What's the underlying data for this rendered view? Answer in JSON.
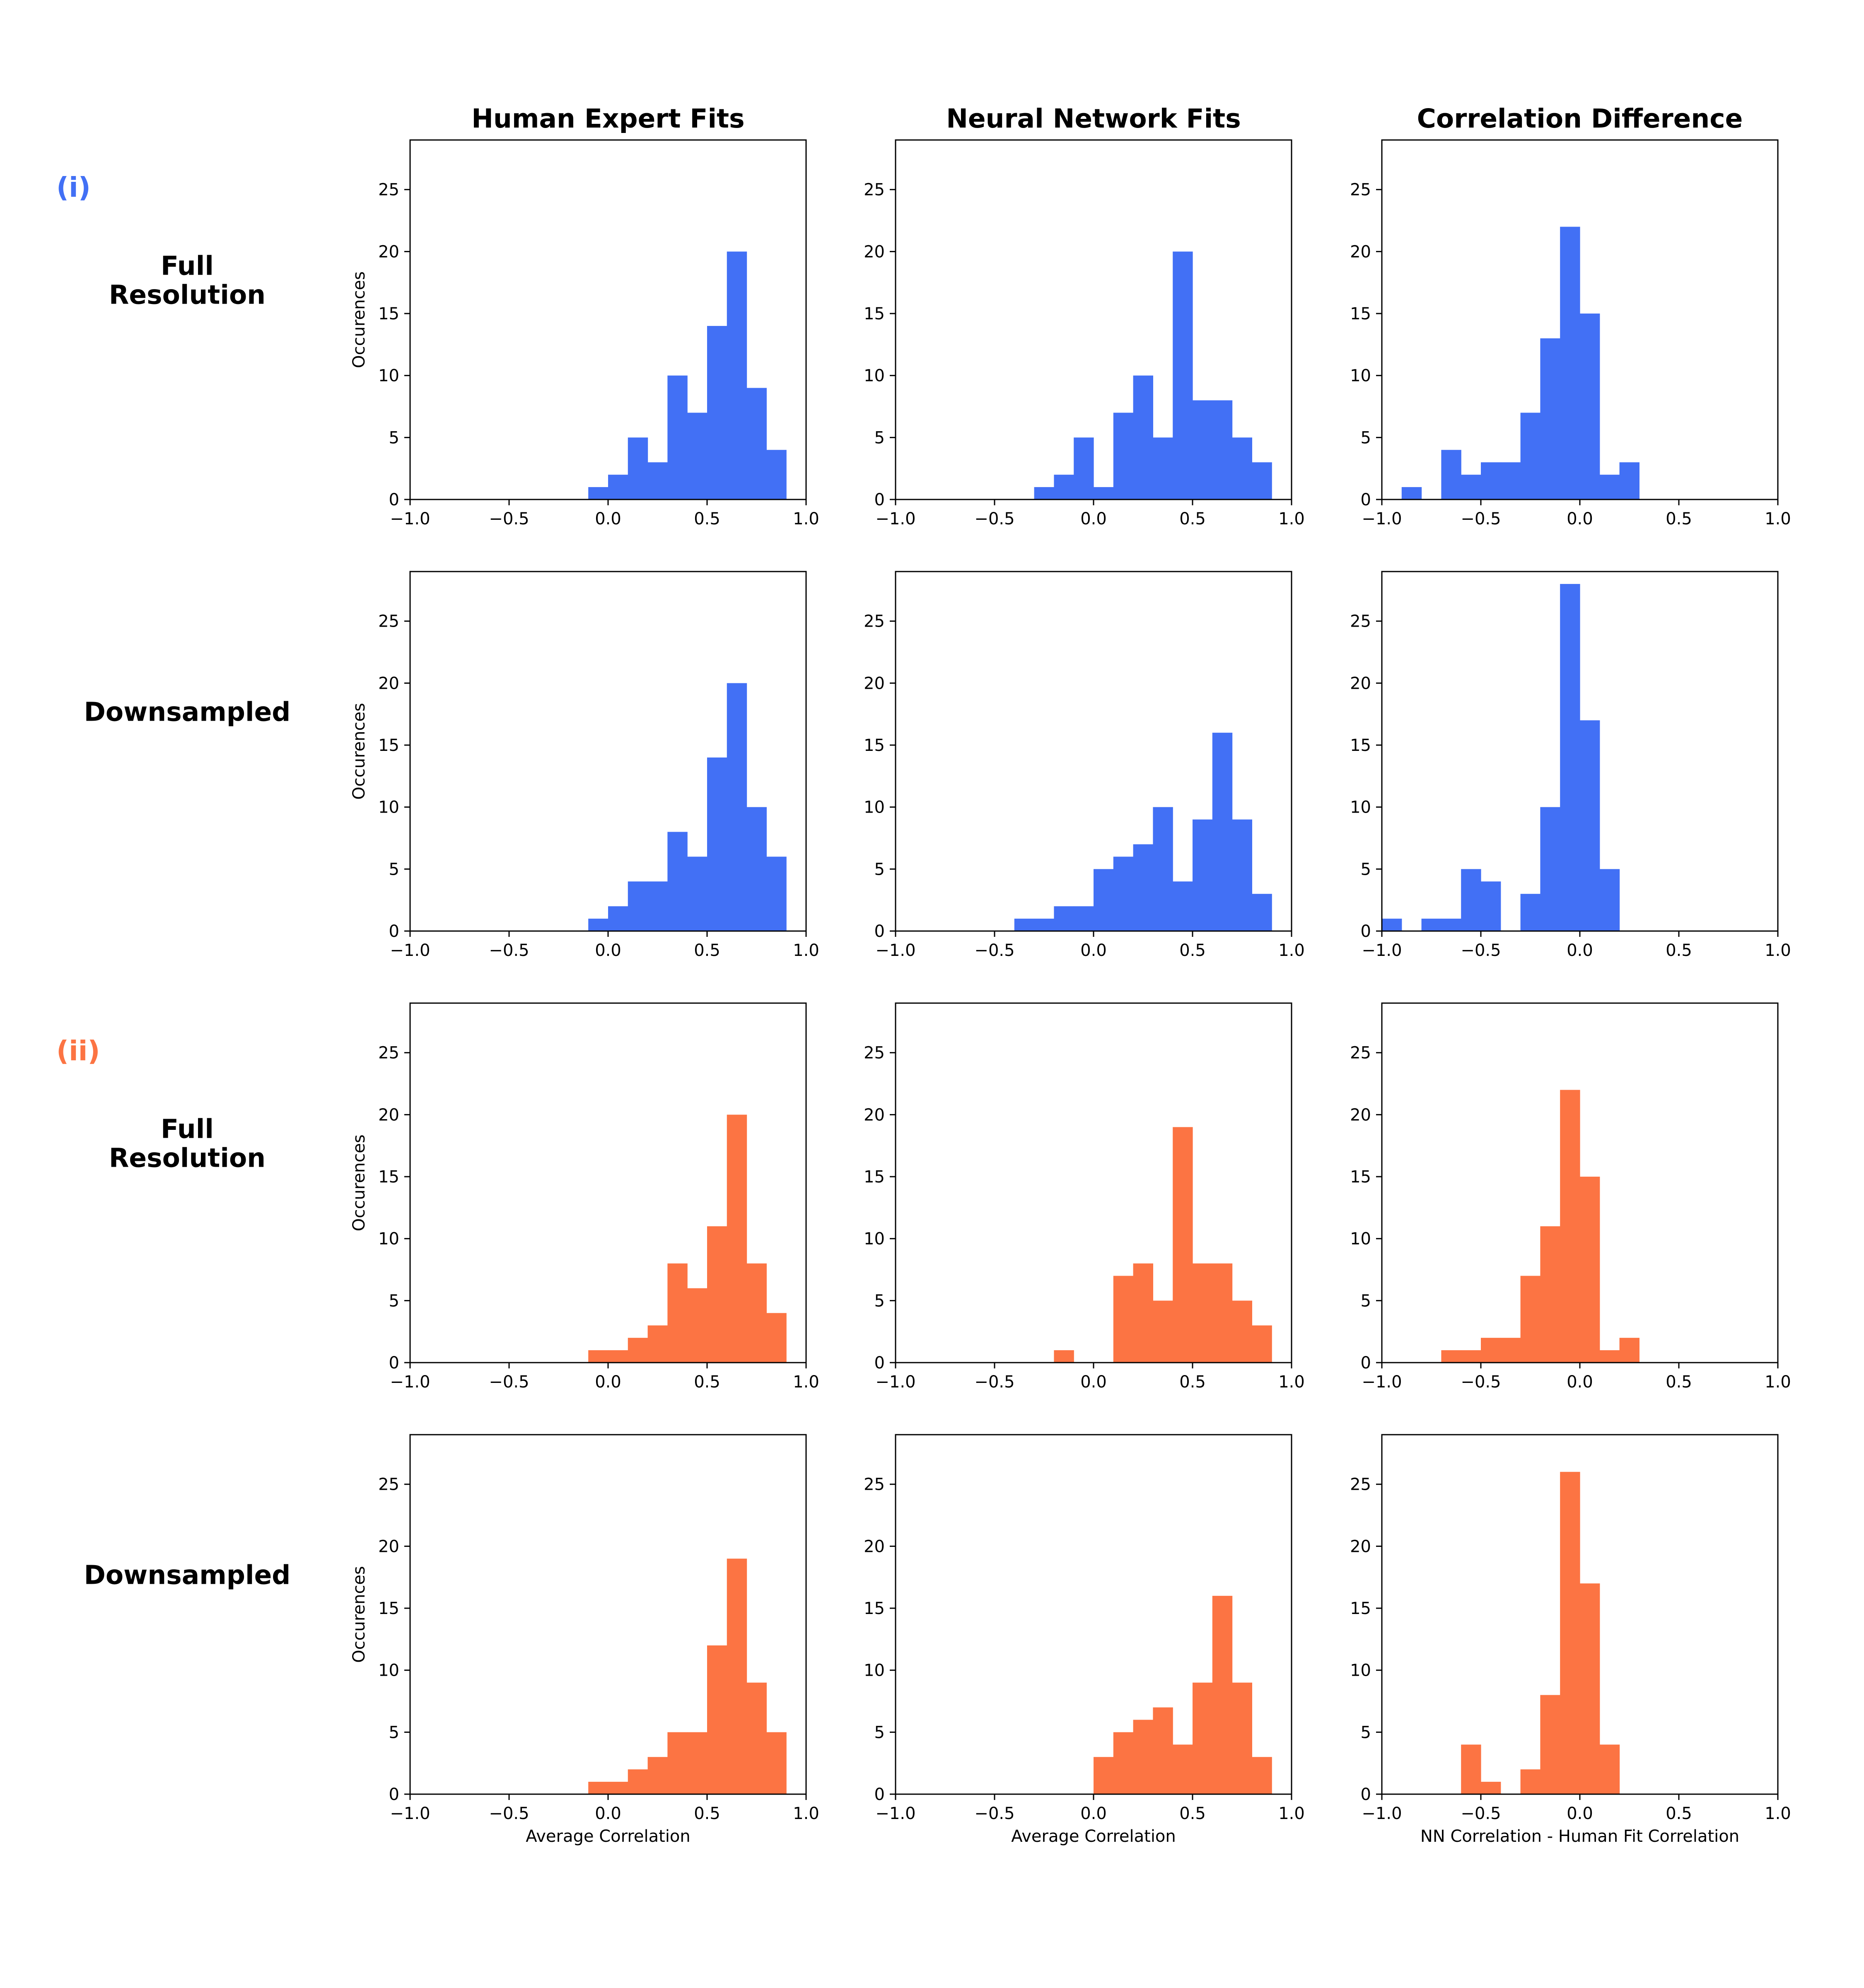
{
  "figure": {
    "column_titles": [
      "Human Expert Fits",
      "Neural Network Fits",
      "Correlation Difference"
    ],
    "groups": [
      {
        "label": "(i)",
        "color": "#4270f5"
      },
      {
        "label": "(ii)",
        "color": "#fc7443"
      }
    ],
    "row_labels": [
      [
        "Full",
        "Resolution"
      ],
      [
        "Downsampled"
      ],
      [
        "Full",
        "Resolution"
      ],
      [
        "Downsampled"
      ]
    ],
    "ylabel": "Occurences",
    "xlabels": [
      "Average Correlation",
      "Average Correlation",
      "NN Correlation - Human Fit Correlation"
    ]
  },
  "chart_data": [
    {
      "type": "bar",
      "group": 0,
      "row": "Full Resolution",
      "column": "Human Expert Fits",
      "bin_start": -1.0,
      "bin_width": 0.1,
      "xlim": [
        -1.0,
        1.0
      ],
      "ylim": [
        0,
        29
      ],
      "x_ticks": [
        "−1.0",
        "−0.5",
        "0.0",
        "0.5",
        "1.0"
      ],
      "y_ticks": [
        "0",
        "5",
        "10",
        "15",
        "20",
        "25"
      ],
      "values": [
        0,
        0,
        0,
        0,
        0,
        0,
        0,
        0,
        0,
        1,
        2,
        5,
        3,
        10,
        7,
        14,
        20,
        9,
        4,
        0
      ]
    },
    {
      "type": "bar",
      "group": 0,
      "row": "Full Resolution",
      "column": "Neural Network Fits",
      "bin_start": -1.0,
      "bin_width": 0.1,
      "xlim": [
        -1.0,
        1.0
      ],
      "ylim": [
        0,
        29
      ],
      "x_ticks": [
        "−1.0",
        "−0.5",
        "0.0",
        "0.5",
        "1.0"
      ],
      "y_ticks": [
        "0",
        "5",
        "10",
        "15",
        "20",
        "25"
      ],
      "values": [
        0,
        0,
        0,
        0,
        0,
        0,
        0,
        1,
        2,
        5,
        1,
        7,
        10,
        5,
        20,
        8,
        8,
        5,
        3,
        0
      ]
    },
    {
      "type": "bar",
      "group": 0,
      "row": "Full Resolution",
      "column": "Correlation Difference",
      "bin_start": -1.0,
      "bin_width": 0.1,
      "xlim": [
        -1.0,
        1.0
      ],
      "ylim": [
        0,
        29
      ],
      "x_ticks": [
        "−1.0",
        "−0.5",
        "0.0",
        "0.5",
        "1.0"
      ],
      "y_ticks": [
        "0",
        "5",
        "10",
        "15",
        "20",
        "25"
      ],
      "values": [
        0,
        1,
        0,
        4,
        2,
        3,
        3,
        7,
        13,
        22,
        15,
        2,
        3,
        0,
        0,
        0,
        0,
        0,
        0,
        0
      ]
    },
    {
      "type": "bar",
      "group": 0,
      "row": "Downsampled",
      "column": "Human Expert Fits",
      "bin_start": -1.0,
      "bin_width": 0.1,
      "xlim": [
        -1.0,
        1.0
      ],
      "ylim": [
        0,
        29
      ],
      "x_ticks": [
        "−1.0",
        "−0.5",
        "0.0",
        "0.5",
        "1.0"
      ],
      "y_ticks": [
        "0",
        "5",
        "10",
        "15",
        "20",
        "25"
      ],
      "values": [
        0,
        0,
        0,
        0,
        0,
        0,
        0,
        0,
        0,
        1,
        2,
        4,
        4,
        8,
        6,
        14,
        20,
        10,
        6,
        0
      ]
    },
    {
      "type": "bar",
      "group": 0,
      "row": "Downsampled",
      "column": "Neural Network Fits",
      "bin_start": -1.0,
      "bin_width": 0.1,
      "xlim": [
        -1.0,
        1.0
      ],
      "ylim": [
        0,
        29
      ],
      "x_ticks": [
        "−1.0",
        "−0.5",
        "0.0",
        "0.5",
        "1.0"
      ],
      "y_ticks": [
        "0",
        "5",
        "10",
        "15",
        "20",
        "25"
      ],
      "values": [
        0,
        0,
        0,
        0,
        0,
        0,
        1,
        1,
        2,
        2,
        5,
        6,
        7,
        10,
        4,
        9,
        16,
        9,
        3,
        0
      ]
    },
    {
      "type": "bar",
      "group": 0,
      "row": "Downsampled",
      "column": "Correlation Difference",
      "bin_start": -1.0,
      "bin_width": 0.1,
      "xlim": [
        -1.0,
        1.0
      ],
      "ylim": [
        0,
        29
      ],
      "x_ticks": [
        "−1.0",
        "−0.5",
        "0.0",
        "0.5",
        "1.0"
      ],
      "y_ticks": [
        "0",
        "5",
        "10",
        "15",
        "20",
        "25"
      ],
      "values": [
        1,
        0,
        1,
        1,
        5,
        4,
        0,
        3,
        10,
        28,
        17,
        5,
        0,
        0,
        0,
        0,
        0,
        0,
        0,
        0
      ]
    },
    {
      "type": "bar",
      "group": 1,
      "row": "Full Resolution",
      "column": "Human Expert Fits",
      "bin_start": -1.0,
      "bin_width": 0.1,
      "xlim": [
        -1.0,
        1.0
      ],
      "ylim": [
        0,
        29
      ],
      "x_ticks": [
        "−1.0",
        "−0.5",
        "0.0",
        "0.5",
        "1.0"
      ],
      "y_ticks": [
        "0",
        "5",
        "10",
        "15",
        "20",
        "25"
      ],
      "values": [
        0,
        0,
        0,
        0,
        0,
        0,
        0,
        0,
        0,
        1,
        1,
        2,
        3,
        8,
        6,
        11,
        20,
        8,
        4,
        0
      ]
    },
    {
      "type": "bar",
      "group": 1,
      "row": "Full Resolution",
      "column": "Neural Network Fits",
      "bin_start": -1.0,
      "bin_width": 0.1,
      "xlim": [
        -1.0,
        1.0
      ],
      "ylim": [
        0,
        29
      ],
      "x_ticks": [
        "−1.0",
        "−0.5",
        "0.0",
        "0.5",
        "1.0"
      ],
      "y_ticks": [
        "0",
        "5",
        "10",
        "15",
        "20",
        "25"
      ],
      "values": [
        0,
        0,
        0,
        0,
        0,
        0,
        0,
        0,
        1,
        0,
        0,
        7,
        8,
        5,
        19,
        8,
        8,
        5,
        3,
        0
      ]
    },
    {
      "type": "bar",
      "group": 1,
      "row": "Full Resolution",
      "column": "Correlation Difference",
      "bin_start": -1.0,
      "bin_width": 0.1,
      "xlim": [
        -1.0,
        1.0
      ],
      "ylim": [
        0,
        29
      ],
      "x_ticks": [
        "−1.0",
        "−0.5",
        "0.0",
        "0.5",
        "1.0"
      ],
      "y_ticks": [
        "0",
        "5",
        "10",
        "15",
        "20",
        "25"
      ],
      "values": [
        0,
        0,
        0,
        1,
        1,
        2,
        2,
        7,
        11,
        22,
        15,
        1,
        2,
        0,
        0,
        0,
        0,
        0,
        0,
        0
      ]
    },
    {
      "type": "bar",
      "group": 1,
      "row": "Downsampled",
      "column": "Human Expert Fits",
      "bin_start": -1.0,
      "bin_width": 0.1,
      "xlim": [
        -1.0,
        1.0
      ],
      "ylim": [
        0,
        29
      ],
      "x_ticks": [
        "−1.0",
        "−0.5",
        "0.0",
        "0.5",
        "1.0"
      ],
      "y_ticks": [
        "0",
        "5",
        "10",
        "15",
        "20",
        "25"
      ],
      "values": [
        0,
        0,
        0,
        0,
        0,
        0,
        0,
        0,
        0,
        1,
        1,
        2,
        3,
        5,
        5,
        12,
        19,
        9,
        5,
        0
      ]
    },
    {
      "type": "bar",
      "group": 1,
      "row": "Downsampled",
      "column": "Neural Network Fits",
      "bin_start": -1.0,
      "bin_width": 0.1,
      "xlim": [
        -1.0,
        1.0
      ],
      "ylim": [
        0,
        29
      ],
      "x_ticks": [
        "−1.0",
        "−0.5",
        "0.0",
        "0.5",
        "1.0"
      ],
      "y_ticks": [
        "0",
        "5",
        "10",
        "15",
        "20",
        "25"
      ],
      "values": [
        0,
        0,
        0,
        0,
        0,
        0,
        0,
        0,
        0,
        0,
        3,
        5,
        6,
        7,
        4,
        9,
        16,
        9,
        3,
        0
      ]
    },
    {
      "type": "bar",
      "group": 1,
      "row": "Downsampled",
      "column": "Correlation Difference",
      "bin_start": -1.0,
      "bin_width": 0.1,
      "xlim": [
        -1.0,
        1.0
      ],
      "ylim": [
        0,
        29
      ],
      "x_ticks": [
        "−1.0",
        "−0.5",
        "0.0",
        "0.5",
        "1.0"
      ],
      "y_ticks": [
        "0",
        "5",
        "10",
        "15",
        "20",
        "25"
      ],
      "values": [
        0,
        0,
        0,
        0,
        4,
        1,
        0,
        2,
        8,
        26,
        17,
        4,
        0,
        0,
        0,
        0,
        0,
        0,
        0,
        0
      ]
    }
  ]
}
